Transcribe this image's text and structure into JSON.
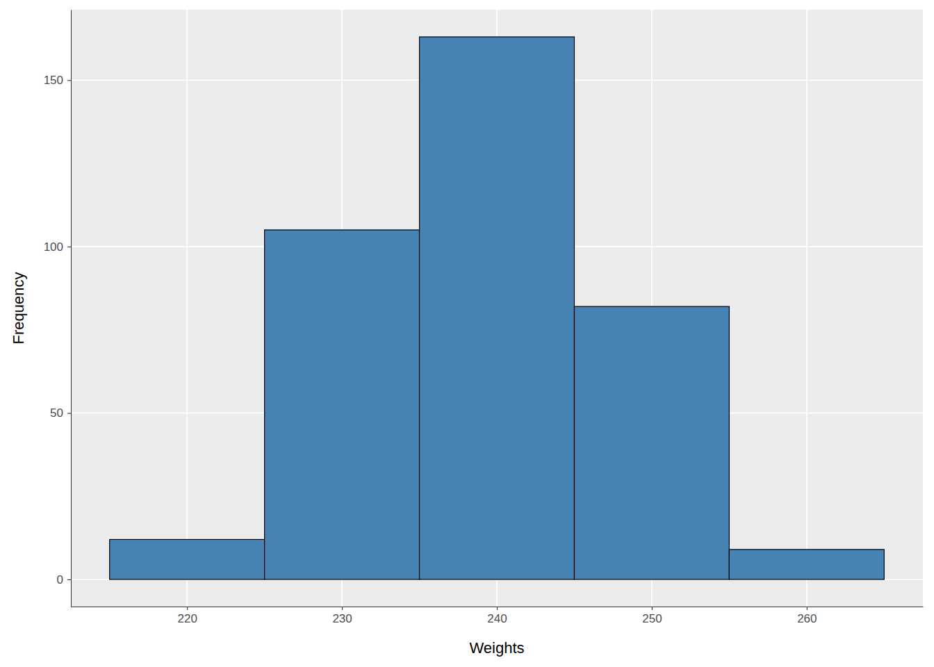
{
  "chart_data": {
    "type": "histogram",
    "xlabel": "Weights",
    "ylabel": "Frequency",
    "bins": [
      215,
      225,
      235,
      245,
      255,
      265
    ],
    "values": [
      12,
      105,
      163,
      82,
      9
    ],
    "color": "#4682b4",
    "xlim": [
      212.5,
      267.5
    ],
    "xticks": [
      220,
      230,
      240,
      250,
      260
    ],
    "ylim": [
      -8.15,
      171.15
    ],
    "yticks": [
      0,
      50,
      100,
      150
    ],
    "grid": true
  }
}
